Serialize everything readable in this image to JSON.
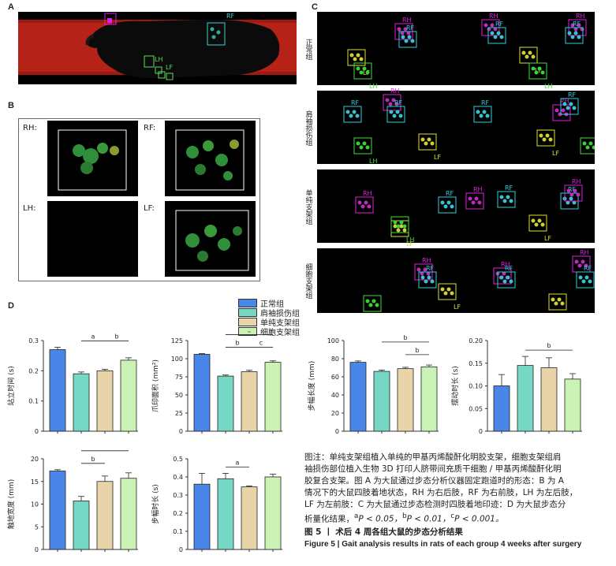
{
  "panel_labels": {
    "a": "A",
    "b": "B",
    "c": "C",
    "d": "D"
  },
  "panel_a": {
    "label_rf": "RF",
    "label_lh": "LH",
    "label_rh": "RH",
    "label_lf": "LF"
  },
  "panel_b": {
    "cells": [
      {
        "label": "RH:"
      },
      {
        "label": "RF:"
      },
      {
        "label": "LH:"
      },
      {
        "label": "LF:"
      }
    ]
  },
  "panel_c": {
    "rows": [
      {
        "group": "正常组",
        "paw_labels": [
          "RH",
          "RF",
          "RH",
          "RF",
          "RH",
          "RF",
          "LF",
          "LH",
          "LF",
          "LH"
        ]
      },
      {
        "group": "肩袖损伤组",
        "paw_labels": [
          "RF",
          "RH",
          "RF",
          "RF",
          "RH",
          "RF",
          "LF",
          "LH",
          "LF",
          "LH"
        ]
      },
      {
        "group": "单纯支架组",
        "paw_labels": [
          "RH",
          "RF",
          "RH",
          "RF",
          "RF",
          "RH",
          "LF",
          "LH",
          "LF"
        ]
      },
      {
        "group": "细胞支架组",
        "paw_labels": [
          "RH",
          "RF",
          "RH",
          "RF",
          "RH",
          "RF",
          "LF",
          "LH",
          "LF"
        ]
      }
    ]
  },
  "legend": [
    {
      "name": "正常组",
      "color": "#4a86e8"
    },
    {
      "name": "肩袖损伤组",
      "color": "#76d7c4"
    },
    {
      "name": "单纯支架组",
      "color": "#e8d4a8"
    },
    {
      "name": "细胞支架组",
      "color": "#c9f2b4"
    }
  ],
  "chart_data": [
    {
      "type": "bar",
      "ylabel": "站立时间 (s)",
      "ylim": [
        0,
        0.3
      ],
      "yticks": [
        "0",
        "0.1",
        "0.2",
        "0.3"
      ],
      "values": [
        0.27,
        0.19,
        0.2,
        0.235
      ],
      "errors": [
        0.008,
        0.006,
        0.005,
        0.008
      ],
      "sig": [
        {
          "label": "b",
          "from": 1,
          "to": 3,
          "level": 1
        },
        {
          "label": "a",
          "from": 1,
          "to": 2,
          "level": 0
        },
        {
          "label": "b",
          "from": 2,
          "to": 3,
          "level": 0
        }
      ]
    },
    {
      "type": "bar",
      "ylabel": "爪印面积 (mm²)",
      "ylim": [
        0,
        125
      ],
      "yticks": [
        "0",
        "25",
        "50",
        "75",
        "100",
        "125"
      ],
      "values": [
        106,
        76,
        82,
        95
      ],
      "errors": [
        1,
        1.5,
        2,
        2
      ],
      "sig": [
        {
          "label": "c",
          "from": 1,
          "to": 3,
          "level": 1
        },
        {
          "label": "b",
          "from": 1,
          "to": 2,
          "level": 0
        },
        {
          "label": "c",
          "from": 2,
          "to": 3,
          "level": 0
        }
      ]
    },
    {
      "type": "bar",
      "ylabel": "步幅长度 (mm)",
      "ylim": [
        0,
        100
      ],
      "yticks": [
        "0",
        "20",
        "40",
        "60",
        "80",
        "100"
      ],
      "values": [
        76,
        66,
        69,
        71
      ],
      "errors": [
        1.5,
        1.5,
        1.5,
        2
      ],
      "sig": [
        {
          "label": "b",
          "from": 1,
          "to": 3,
          "level": 1
        },
        {
          "label": "b",
          "from": 2,
          "to": 3,
          "level": 0
        }
      ]
    },
    {
      "type": "bar",
      "ylabel": "摆动时长 (s)",
      "ylim": [
        0,
        0.2
      ],
      "yticks": [
        "0",
        "0.05",
        "0.10",
        "0.15",
        "0.20"
      ],
      "values": [
        0.1,
        0.145,
        0.14,
        0.115
      ],
      "errors": [
        0.025,
        0.02,
        0.022,
        0.012
      ],
      "sig": [
        {
          "label": "b",
          "from": 1,
          "to": 3,
          "level": 0
        }
      ]
    },
    {
      "type": "bar",
      "ylabel": "触地宽度 (mm)",
      "ylim": [
        0,
        20
      ],
      "yticks": [
        "0",
        "5",
        "10",
        "15",
        "20"
      ],
      "values": [
        17.3,
        10.7,
        15,
        15.7
      ],
      "errors": [
        0.3,
        1,
        1.2,
        1.2
      ],
      "sig": [
        {
          "label": "b",
          "from": 1,
          "to": 3,
          "level": 1
        },
        {
          "label": "b",
          "from": 1,
          "to": 2,
          "level": 0
        }
      ]
    },
    {
      "type": "bar",
      "ylabel": "步幅时长 (s)",
      "ylim": [
        0,
        0.5
      ],
      "yticks": [
        "0",
        "0.1",
        "0.2",
        "0.3",
        "0.4",
        "0.5"
      ],
      "values": [
        0.36,
        0.39,
        0.345,
        0.4
      ],
      "errors": [
        0.06,
        0.03,
        0.005,
        0.015
      ],
      "sig": [
        {
          "label": "a",
          "from": 1,
          "to": 2,
          "level": 0
        }
      ]
    }
  ],
  "caption": {
    "line1": "图注：单纯支架组植入单纯的甲基丙烯酸酐化明胶支架，细胞支架组肩",
    "line2": "袖损伤部位植入生物 3D 打印人脐带间充质干细胞 / 甲基丙烯酸酐化明",
    "line3": "胶复合支架。图 A 为大鼠通过步态分析仪器固定跑道时的形态：B 为 A",
    "line4": "情况下的大鼠四肢着地状态，RH 为右后肢，RF 为右前肢，LH 为左后肢，",
    "line5": "LF 为左前肢：C 为大鼠通过步态检测时四肢着地印迹：D 为大鼠步态分",
    "line6": "析量化结果，",
    "line6b": "P < 0.05，",
    "line6c": "P < 0.01，",
    "line6d": "P < 0.001。",
    "sup_a": "a",
    "sup_b": "b",
    "sup_c": "c",
    "title_cn": "图 5 丨 术后 4 周各组大鼠的步态分析结果",
    "title_en": "Figure 5  |  Gait analysis results in rats of each group 4 weeks after surgery"
  }
}
